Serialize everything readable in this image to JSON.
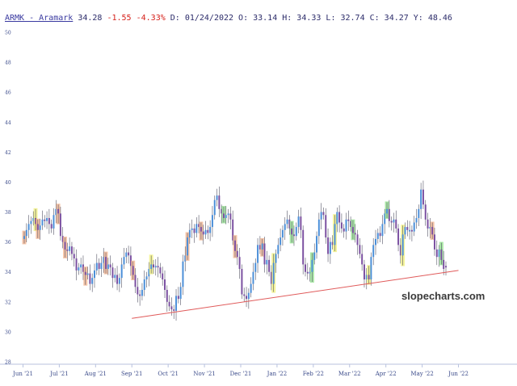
{
  "header": {
    "symbol_link": "ARMK - Aramark",
    "last": "34.28",
    "change": "-1.55",
    "change_pct": "-4.33%",
    "ohlc_text": "D: 01/24/2022 O: 33.14 H: 34.33 L: 32.74 C: 34.27 Y: 48.46"
  },
  "watermark": "slopecharts.com",
  "colors": {
    "up_body": "#4a8ed8",
    "down_body": "#7a4fa0",
    "highlight_orange": "#f2b08a",
    "highlight_green": "#8fe08a",
    "highlight_yellow": "#f0f07a",
    "trendline": "#e05a5a",
    "axis": "#b8c2de",
    "tick_text": "#3a4a8a"
  },
  "chart_data": {
    "type": "candlestick",
    "title": "",
    "xlabel": "",
    "ylabel": "",
    "ylim": [
      28,
      50
    ],
    "y_ticks": [
      "28",
      "30",
      "32",
      "34",
      "36",
      "38",
      "40",
      "42",
      "44",
      "46",
      "48",
      "50"
    ],
    "x_ticks": [
      "Jun '21",
      "Jul '21",
      "Aug '21",
      "Sep '21",
      "Oct '21",
      "Nov '21",
      "Dec '21",
      "Jan '22",
      "Feb '22",
      "Mar '22",
      "Apr '22",
      "May '22",
      "Jun '22"
    ],
    "grid": false,
    "trendline": {
      "from": [
        "Sep '21",
        30.9
      ],
      "to": [
        "Jun '22",
        34.1
      ]
    },
    "series": [
      {
        "close": [
          36.4,
          36.8,
          37.2,
          37.4,
          37.6,
          37.2,
          36.8,
          37.1,
          37.5,
          37.4,
          37.6,
          37.2,
          36.9,
          37.8,
          38.2,
          37.9,
          36.4,
          36.0,
          35.5,
          35.4,
          35.7,
          35.2,
          34.9,
          34.1,
          34.3,
          34.5,
          34.0,
          33.8,
          33.9,
          33.2,
          33.6,
          34.1,
          34.6,
          34.2,
          34.6,
          35.0,
          34.2,
          34.5,
          34.3,
          33.6,
          33.8,
          33.2,
          33.6,
          34.5,
          35.0,
          35.3,
          35.1,
          34.4,
          33.8,
          33.0,
          32.5,
          32.4,
          32.8,
          33.5,
          33.7,
          34.2,
          34.5,
          34.3,
          34.4,
          34.3,
          33.9,
          33.5,
          32.8,
          32.0,
          31.7,
          31.5,
          31.4,
          32.4,
          32.2,
          33.0,
          34.7,
          35.1,
          36.3,
          36.8,
          36.9,
          36.6,
          37.2,
          37.0,
          36.7,
          36.5,
          36.8,
          36.6,
          37.0,
          37.8,
          38.8,
          39.1,
          38.2,
          37.9,
          37.6,
          37.8,
          37.9,
          37.5,
          36.1,
          35.4,
          35.0,
          34.2,
          32.5,
          32.4,
          32.2,
          32.6,
          33.2,
          34.0,
          34.6,
          35.8,
          35.5,
          35.9,
          34.5,
          34.8,
          34.0,
          33.2,
          34.6,
          35.2,
          35.8,
          36.3,
          36.8,
          37.2,
          37.5,
          36.9,
          36.5,
          36.4,
          37.0,
          37.7,
          36.8,
          34.5,
          34.0,
          33.9,
          34.0,
          34.8,
          35.3,
          36.4,
          37.5,
          38.0,
          37.8,
          36.3,
          35.2,
          36.0,
          35.8,
          37.2,
          38.0,
          37.3,
          36.9,
          36.7,
          37.5,
          37.4,
          37.0,
          36.6,
          36.5,
          35.8,
          35.2,
          34.5,
          33.5,
          33.8,
          33.5,
          35.0,
          35.8,
          36.2,
          36.6,
          36.4,
          37.2,
          37.9,
          38.2,
          37.4,
          37.3,
          37.5,
          36.9,
          35.8,
          35.1,
          36.5,
          37.0,
          36.8,
          36.8,
          36.7,
          37.3,
          37.6,
          38.2,
          39.5,
          38.5,
          37.5,
          36.9,
          37.0,
          36.5,
          35.5,
          35.0,
          35.5,
          34.8,
          34.2,
          34.3
        ],
        "up": [
          true,
          true,
          true,
          true,
          true,
          false,
          false,
          true,
          true,
          false,
          true,
          false,
          false,
          true,
          true,
          false,
          false,
          false,
          false,
          false,
          true,
          false,
          false,
          false,
          true,
          true,
          false,
          false,
          true,
          false,
          true,
          true,
          true,
          false,
          true,
          true,
          false,
          true,
          false,
          false,
          true,
          false,
          true,
          true,
          true,
          true,
          false,
          false,
          false,
          false,
          false,
          false,
          true,
          true,
          true,
          true,
          true,
          false,
          true,
          false,
          false,
          false,
          false,
          false,
          false,
          false,
          false,
          true,
          false,
          true,
          true,
          true,
          true,
          true,
          true,
          false,
          true,
          false,
          false,
          false,
          true,
          false,
          true,
          true,
          true,
          true,
          false,
          false,
          false,
          true,
          true,
          false,
          false,
          false,
          false,
          false,
          false,
          false,
          false,
          true,
          true,
          true,
          true,
          true,
          false,
          true,
          false,
          true,
          false,
          false,
          true,
          true,
          true,
          true,
          true,
          true,
          true,
          false,
          false,
          false,
          true,
          true,
          false,
          false,
          false,
          false,
          true,
          true,
          true,
          true,
          true,
          true,
          false,
          false,
          false,
          true,
          false,
          true,
          true,
          false,
          false,
          false,
          true,
          false,
          false,
          false,
          false,
          false,
          false,
          false,
          false,
          true,
          false,
          true,
          true,
          true,
          true,
          false,
          true,
          true,
          true,
          false,
          false,
          true,
          false,
          false,
          false,
          true,
          true,
          false,
          true,
          false,
          true,
          true,
          true,
          true,
          false,
          false,
          false,
          true,
          false,
          false,
          false,
          true,
          false,
          false,
          false
        ],
        "highlighted_bars": [
          0,
          5,
          6,
          15,
          18,
          27,
          36,
          48,
          56,
          72,
          78,
          88,
          93,
          105,
          110,
          118,
          127,
          137,
          145,
          152,
          160,
          167,
          180,
          184,
          188
        ]
      }
    ]
  }
}
